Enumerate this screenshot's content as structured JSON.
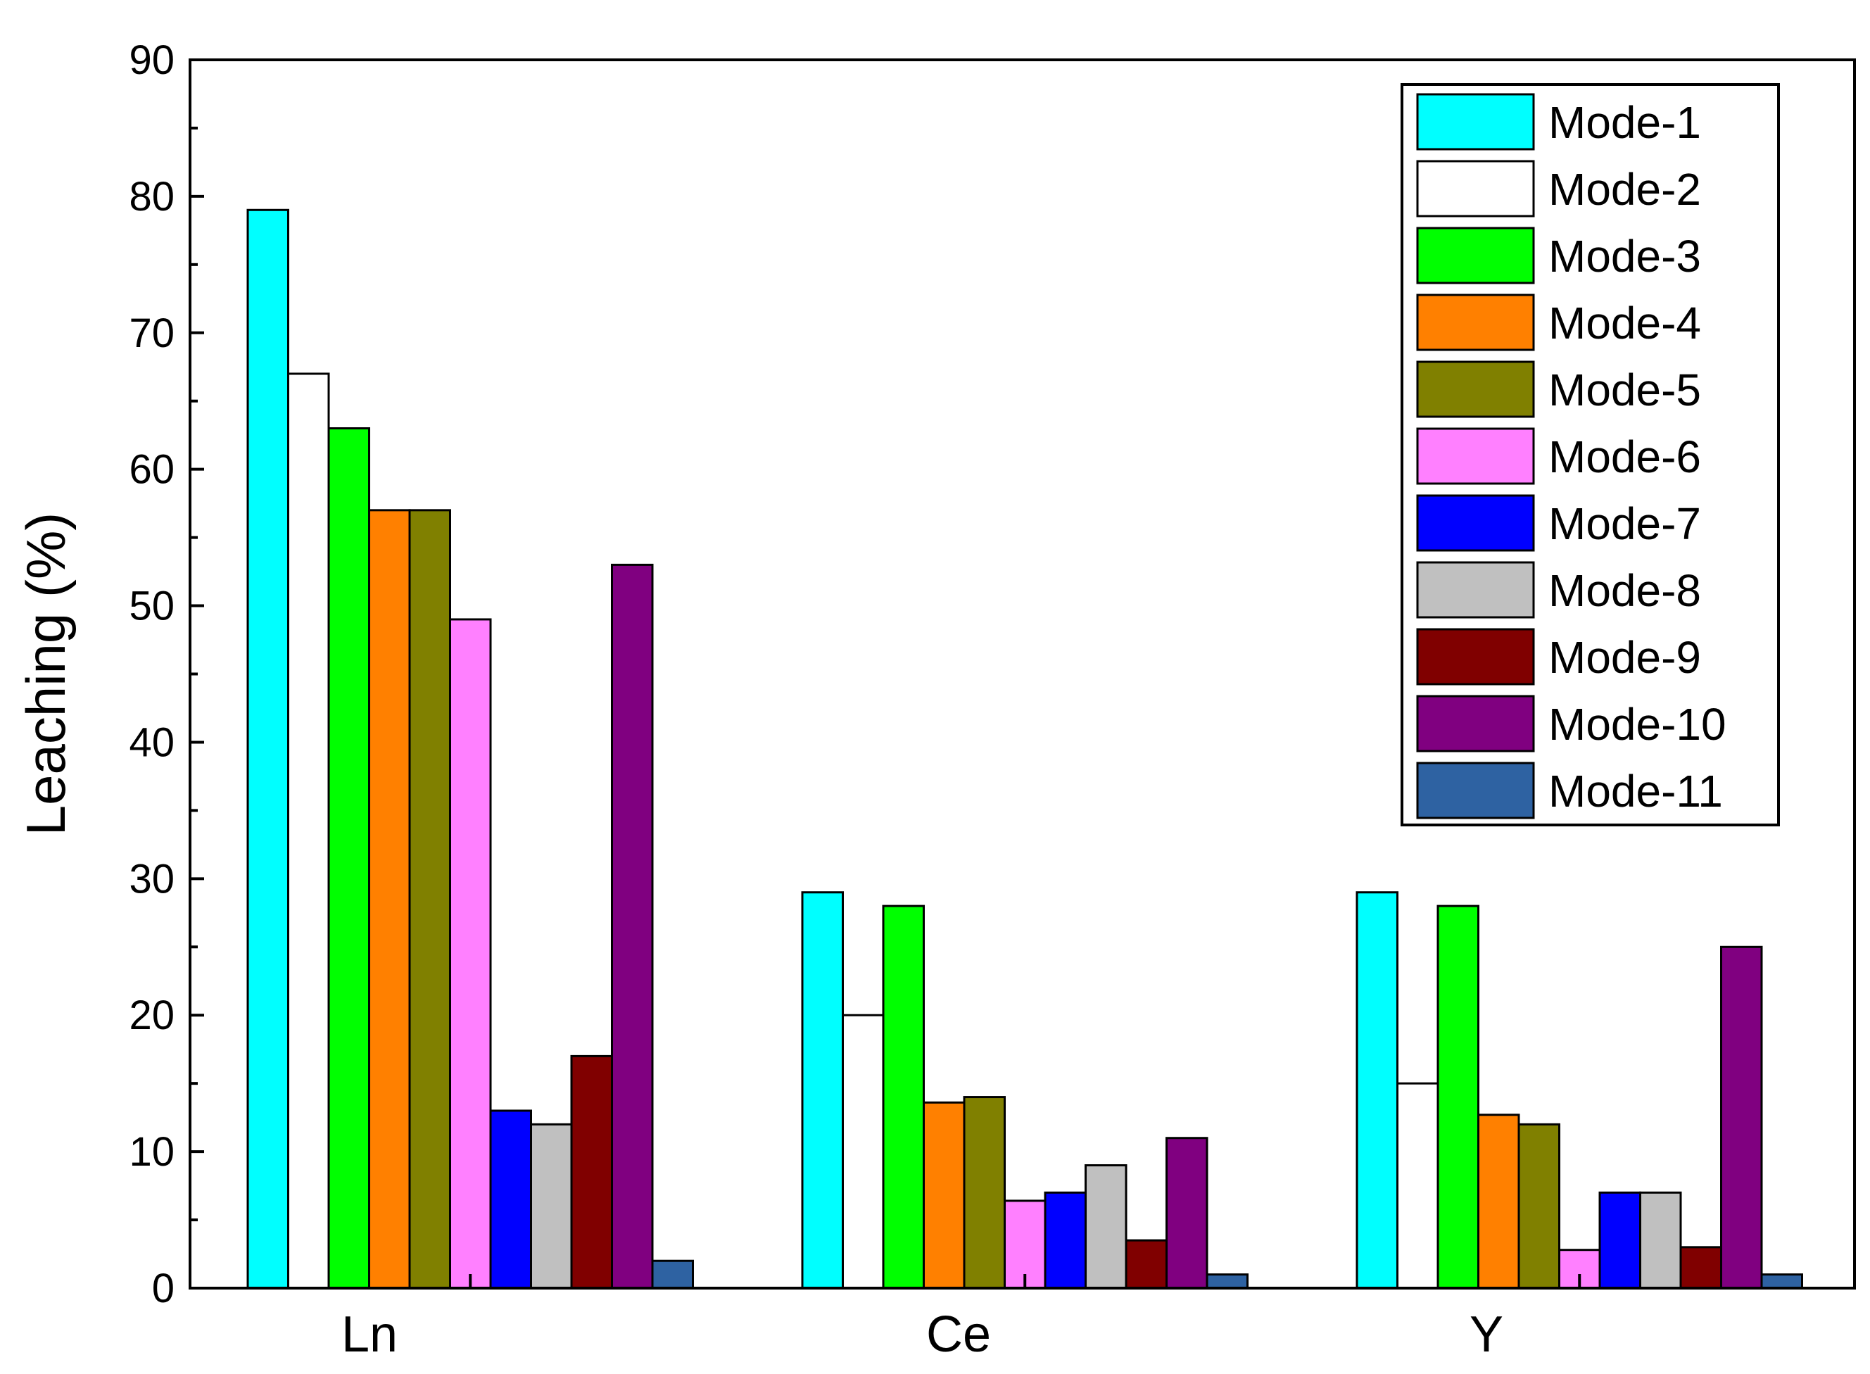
{
  "chart_data": {
    "type": "bar",
    "title": "",
    "xlabel": "",
    "ylabel": "Leaching (%)",
    "ylim": [
      0,
      90
    ],
    "yticks": [
      0,
      10,
      20,
      30,
      40,
      50,
      60,
      70,
      80,
      90
    ],
    "grid": false,
    "legend_position": "top-right",
    "categories": [
      "Ln",
      "Ce",
      "Y"
    ],
    "series": [
      {
        "name": "Mode-1",
        "color": "#00FFFF",
        "values": [
          79,
          29,
          29
        ]
      },
      {
        "name": "Mode-2",
        "color": "#FFFFFF",
        "values": [
          67,
          20,
          15
        ]
      },
      {
        "name": "Mode-3",
        "color": "#00FF00",
        "values": [
          63,
          28,
          28
        ]
      },
      {
        "name": "Mode-4",
        "color": "#FF8000",
        "values": [
          57,
          13.6,
          12.7
        ]
      },
      {
        "name": "Mode-5",
        "color": "#808000",
        "values": [
          57,
          14,
          12
        ]
      },
      {
        "name": "Mode-6",
        "color": "#FF80FF",
        "values": [
          49,
          6.4,
          2.8
        ]
      },
      {
        "name": "Mode-7",
        "color": "#0000FF",
        "values": [
          13,
          7,
          7
        ]
      },
      {
        "name": "Mode-8",
        "color": "#C0C0C0",
        "values": [
          12,
          9,
          7
        ]
      },
      {
        "name": "Mode-9",
        "color": "#800000",
        "values": [
          17,
          3.5,
          3
        ]
      },
      {
        "name": "Mode-10",
        "color": "#800080",
        "values": [
          53,
          11,
          25
        ]
      },
      {
        "name": "Mode-11",
        "color": "#2E62A2",
        "values": [
          2,
          1,
          1
        ]
      }
    ]
  }
}
